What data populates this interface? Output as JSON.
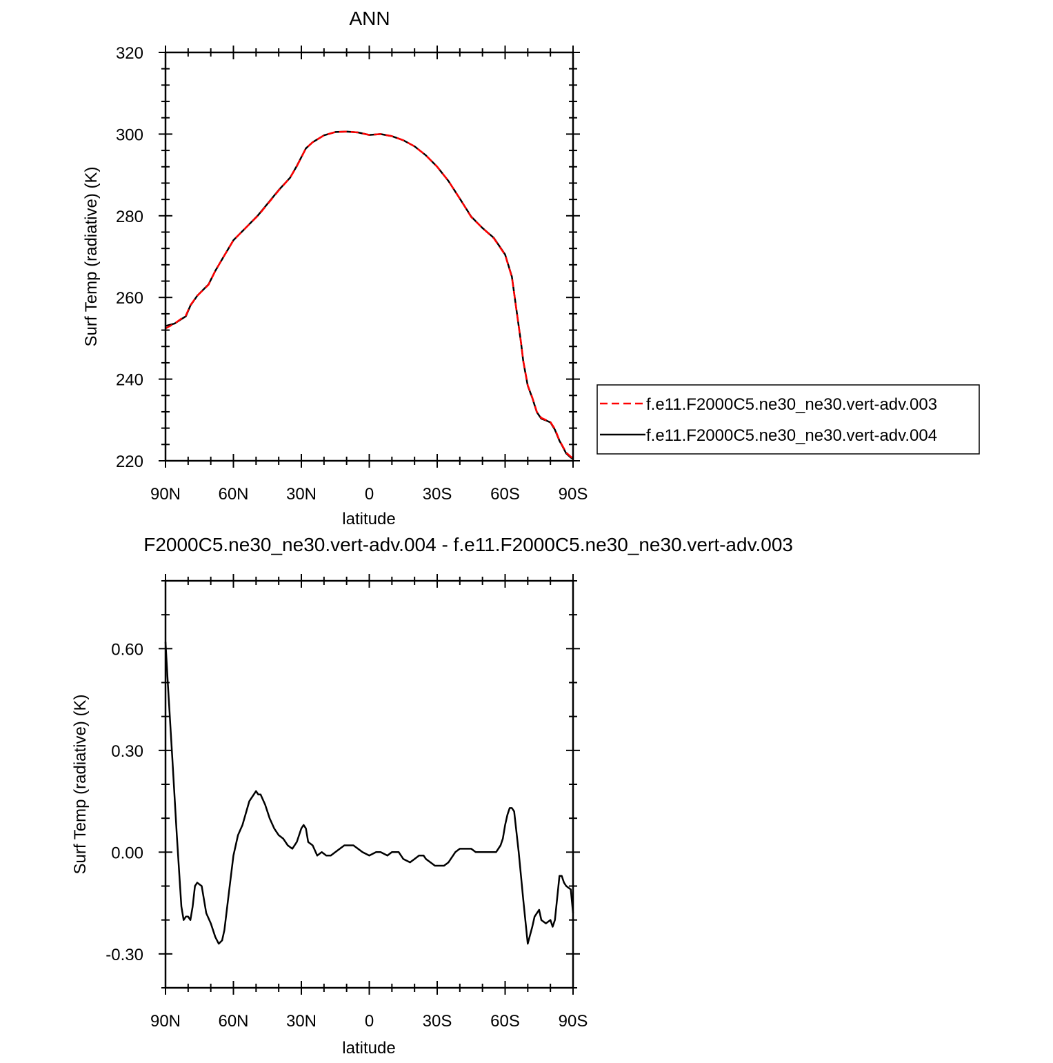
{
  "chart_data": [
    {
      "type": "line",
      "title": "ANN",
      "xlabel": "latitude",
      "ylabel": "Surf Temp (radiative) (K)",
      "xlim": [
        90,
        -90
      ],
      "ylim": [
        220,
        320
      ],
      "x_ticks": [
        {
          "v": 90,
          "label": "90N"
        },
        {
          "v": 60,
          "label": "60N"
        },
        {
          "v": 30,
          "label": "30N"
        },
        {
          "v": 0,
          "label": "0"
        },
        {
          "v": -30,
          "label": "30S"
        },
        {
          "v": -60,
          "label": "60S"
        },
        {
          "v": -90,
          "label": "90S"
        }
      ],
      "y_ticks": [
        {
          "v": 220,
          "label": "220"
        },
        {
          "v": 240,
          "label": "240"
        },
        {
          "v": 260,
          "label": "260"
        },
        {
          "v": 280,
          "label": "280"
        },
        {
          "v": 300,
          "label": "300"
        },
        {
          "v": 320,
          "label": "320"
        }
      ],
      "legend_position": "right",
      "series": [
        {
          "name": "f.e11.F2000C5.ne30_ne30.vert-adv.003",
          "color": "#ff0000",
          "dash": "dashed",
          "x": [
            90,
            86,
            81,
            79,
            76,
            71,
            68,
            64,
            60,
            55,
            49,
            45,
            40,
            35,
            32,
            28,
            25,
            20,
            15,
            10,
            5,
            0,
            -5,
            -10,
            -15,
            -20,
            -25,
            -30,
            -35,
            -40,
            -45,
            -50,
            -55,
            -60,
            -63,
            -65,
            -67,
            -68,
            -70,
            -72,
            -74,
            -76,
            -78,
            -80,
            -82,
            -84,
            -85,
            -87,
            -89,
            -90
          ],
          "y": [
            252.4,
            253.6,
            255.6,
            258.1,
            260.4,
            263.1,
            266.5,
            270.3,
            274.0,
            276.8,
            280.1,
            282.8,
            286.2,
            289.3,
            292.1,
            296.5,
            298.0,
            299.7,
            300.5,
            300.6,
            300.4,
            299.8,
            300.0,
            299.5,
            298.5,
            297.0,
            294.8,
            292.0,
            288.5,
            284.2,
            279.7,
            277.0,
            274.5,
            270.4,
            265.0,
            257.0,
            249.0,
            244.5,
            238.5,
            235.5,
            232.0,
            230.5,
            230.0,
            229.5,
            227.8,
            225.0,
            224.0,
            222.0,
            221.0,
            220.7
          ]
        },
        {
          "name": "f.e11.F2000C5.ne30_ne30.vert-adv.004",
          "color": "#000000",
          "dash": "solid",
          "x": [
            90,
            86,
            81,
            79,
            76,
            71,
            68,
            64,
            60,
            55,
            49,
            45,
            40,
            35,
            32,
            28,
            25,
            20,
            15,
            10,
            5,
            0,
            -5,
            -10,
            -15,
            -20,
            -25,
            -30,
            -35,
            -40,
            -45,
            -50,
            -55,
            -60,
            -63,
            -65,
            -67,
            -68,
            -70,
            -72,
            -74,
            -76,
            -78,
            -80,
            -82,
            -84,
            -85,
            -87,
            -89,
            -90
          ],
          "y": [
            253.0,
            253.6,
            255.4,
            258.0,
            260.4,
            263.2,
            266.5,
            270.3,
            274.0,
            276.8,
            280.2,
            282.9,
            286.3,
            289.3,
            292.2,
            296.5,
            298.0,
            299.7,
            300.5,
            300.6,
            300.4,
            299.8,
            300.0,
            299.5,
            298.5,
            297.0,
            294.8,
            292.0,
            288.5,
            284.2,
            279.8,
            277.0,
            274.6,
            270.5,
            265.1,
            257.0,
            249.0,
            244.4,
            238.4,
            235.4,
            231.9,
            230.3,
            229.9,
            229.4,
            227.6,
            224.9,
            223.9,
            221.8,
            220.8,
            220.5
          ]
        }
      ]
    },
    {
      "type": "line",
      "title": "F2000C5.ne30_ne30.vert-adv.004 - f.e11.F2000C5.ne30_ne30.vert-adv.003",
      "xlabel": "latitude",
      "ylabel": "Surf Temp (radiative) (K)",
      "xlim": [
        90,
        -90
      ],
      "ylim": [
        -0.4,
        0.8
      ],
      "x_ticks": [
        {
          "v": 90,
          "label": "90N"
        },
        {
          "v": 60,
          "label": "60N"
        },
        {
          "v": 30,
          "label": "30N"
        },
        {
          "v": 0,
          "label": "0"
        },
        {
          "v": -30,
          "label": "30S"
        },
        {
          "v": -60,
          "label": "60S"
        },
        {
          "v": -90,
          "label": "90S"
        }
      ],
      "y_ticks": [
        {
          "v": -0.3,
          "label": "-0.30"
        },
        {
          "v": 0.0,
          "label": "0.00"
        },
        {
          "v": 0.3,
          "label": "0.30"
        },
        {
          "v": 0.6,
          "label": "0.60"
        }
      ],
      "series": [
        {
          "color": "#000000",
          "dash": "solid",
          "x": [
            90,
            89,
            87,
            85,
            83,
            82,
            81,
            80,
            79,
            78,
            77,
            76,
            74,
            72,
            70,
            68,
            66.5,
            65,
            64,
            62,
            60,
            58,
            56,
            53,
            50,
            49,
            48,
            46,
            44,
            42,
            40,
            38,
            36,
            34,
            32,
            30,
            29,
            28,
            27,
            25,
            23,
            21,
            19,
            17,
            15,
            13,
            11,
            9,
            7,
            5,
            3,
            0,
            -3,
            -5,
            -8,
            -10,
            -13,
            -15,
            -18,
            -20,
            -22,
            -24,
            -25,
            -27,
            -29,
            -31,
            -33,
            -35,
            -38,
            -40,
            -43,
            -45,
            -47,
            -50,
            -52,
            -54,
            -56,
            -58,
            -59,
            -60,
            -61,
            -62,
            -63,
            -64,
            -66,
            -68,
            -70,
            -72,
            -73,
            -75,
            -76,
            -78,
            -80,
            -81,
            -82,
            -84,
            -85,
            -86,
            -87,
            -89,
            -90
          ],
          "y": [
            0.62,
            0.5,
            0.28,
            0.05,
            -0.16,
            -0.2,
            -0.19,
            -0.19,
            -0.2,
            -0.16,
            -0.1,
            -0.09,
            -0.1,
            -0.18,
            -0.21,
            -0.25,
            -0.27,
            -0.26,
            -0.23,
            -0.12,
            -0.01,
            0.05,
            0.08,
            0.15,
            0.18,
            0.17,
            0.17,
            0.14,
            0.1,
            0.07,
            0.05,
            0.04,
            0.02,
            0.01,
            0.03,
            0.07,
            0.08,
            0.07,
            0.03,
            0.02,
            -0.01,
            0.0,
            -0.01,
            -0.01,
            0.0,
            0.01,
            0.02,
            0.02,
            0.02,
            0.01,
            0.0,
            -0.01,
            0.0,
            0.0,
            -0.01,
            0.0,
            0.0,
            -0.02,
            -0.03,
            -0.02,
            -0.01,
            -0.01,
            -0.02,
            -0.03,
            -0.04,
            -0.04,
            -0.04,
            -0.03,
            0.0,
            0.01,
            0.01,
            0.01,
            0.0,
            0.0,
            0.0,
            0.0,
            0.0,
            0.02,
            0.04,
            0.08,
            0.11,
            0.13,
            0.13,
            0.12,
            0.0,
            -0.14,
            -0.27,
            -0.22,
            -0.19,
            -0.17,
            -0.2,
            -0.21,
            -0.2,
            -0.22,
            -0.2,
            -0.07,
            -0.07,
            -0.09,
            -0.1,
            -0.11,
            -0.18
          ]
        }
      ]
    }
  ]
}
